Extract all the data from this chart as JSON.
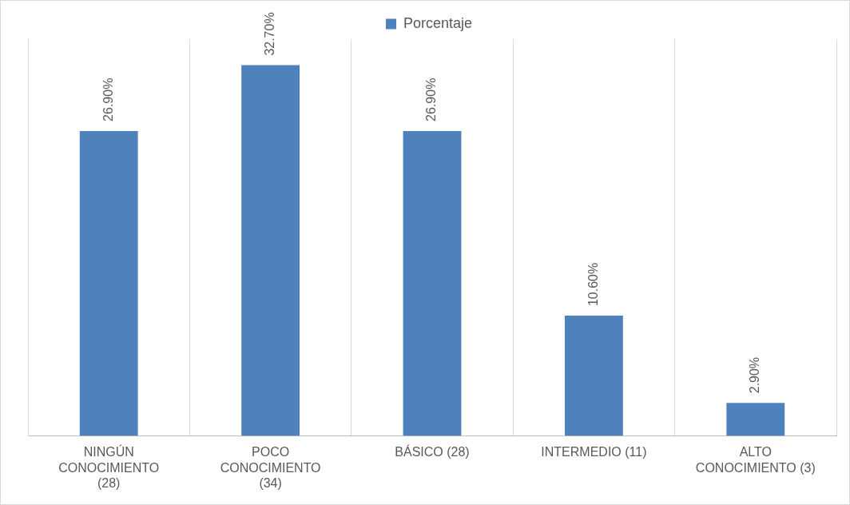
{
  "chart_data": {
    "type": "bar",
    "categories": [
      "NINGÚN CONOCIMIENTO (28)",
      "POCO CONOCIMIENTO (34)",
      "BÁSICO (28)",
      "INTERMEDIO (11)",
      "ALTO CONOCIMIENTO (3)"
    ],
    "series": [
      {
        "name": "Porcentaje",
        "color": "#4f81bd",
        "values": [
          26.9,
          32.7,
          26.9,
          10.6,
          2.9
        ],
        "value_labels": [
          "26.90%",
          "32.70%",
          "26.90%",
          "10.60%",
          "2.90%"
        ]
      }
    ],
    "grid": "x",
    "legend": "top",
    "tick_labels": "x"
  }
}
